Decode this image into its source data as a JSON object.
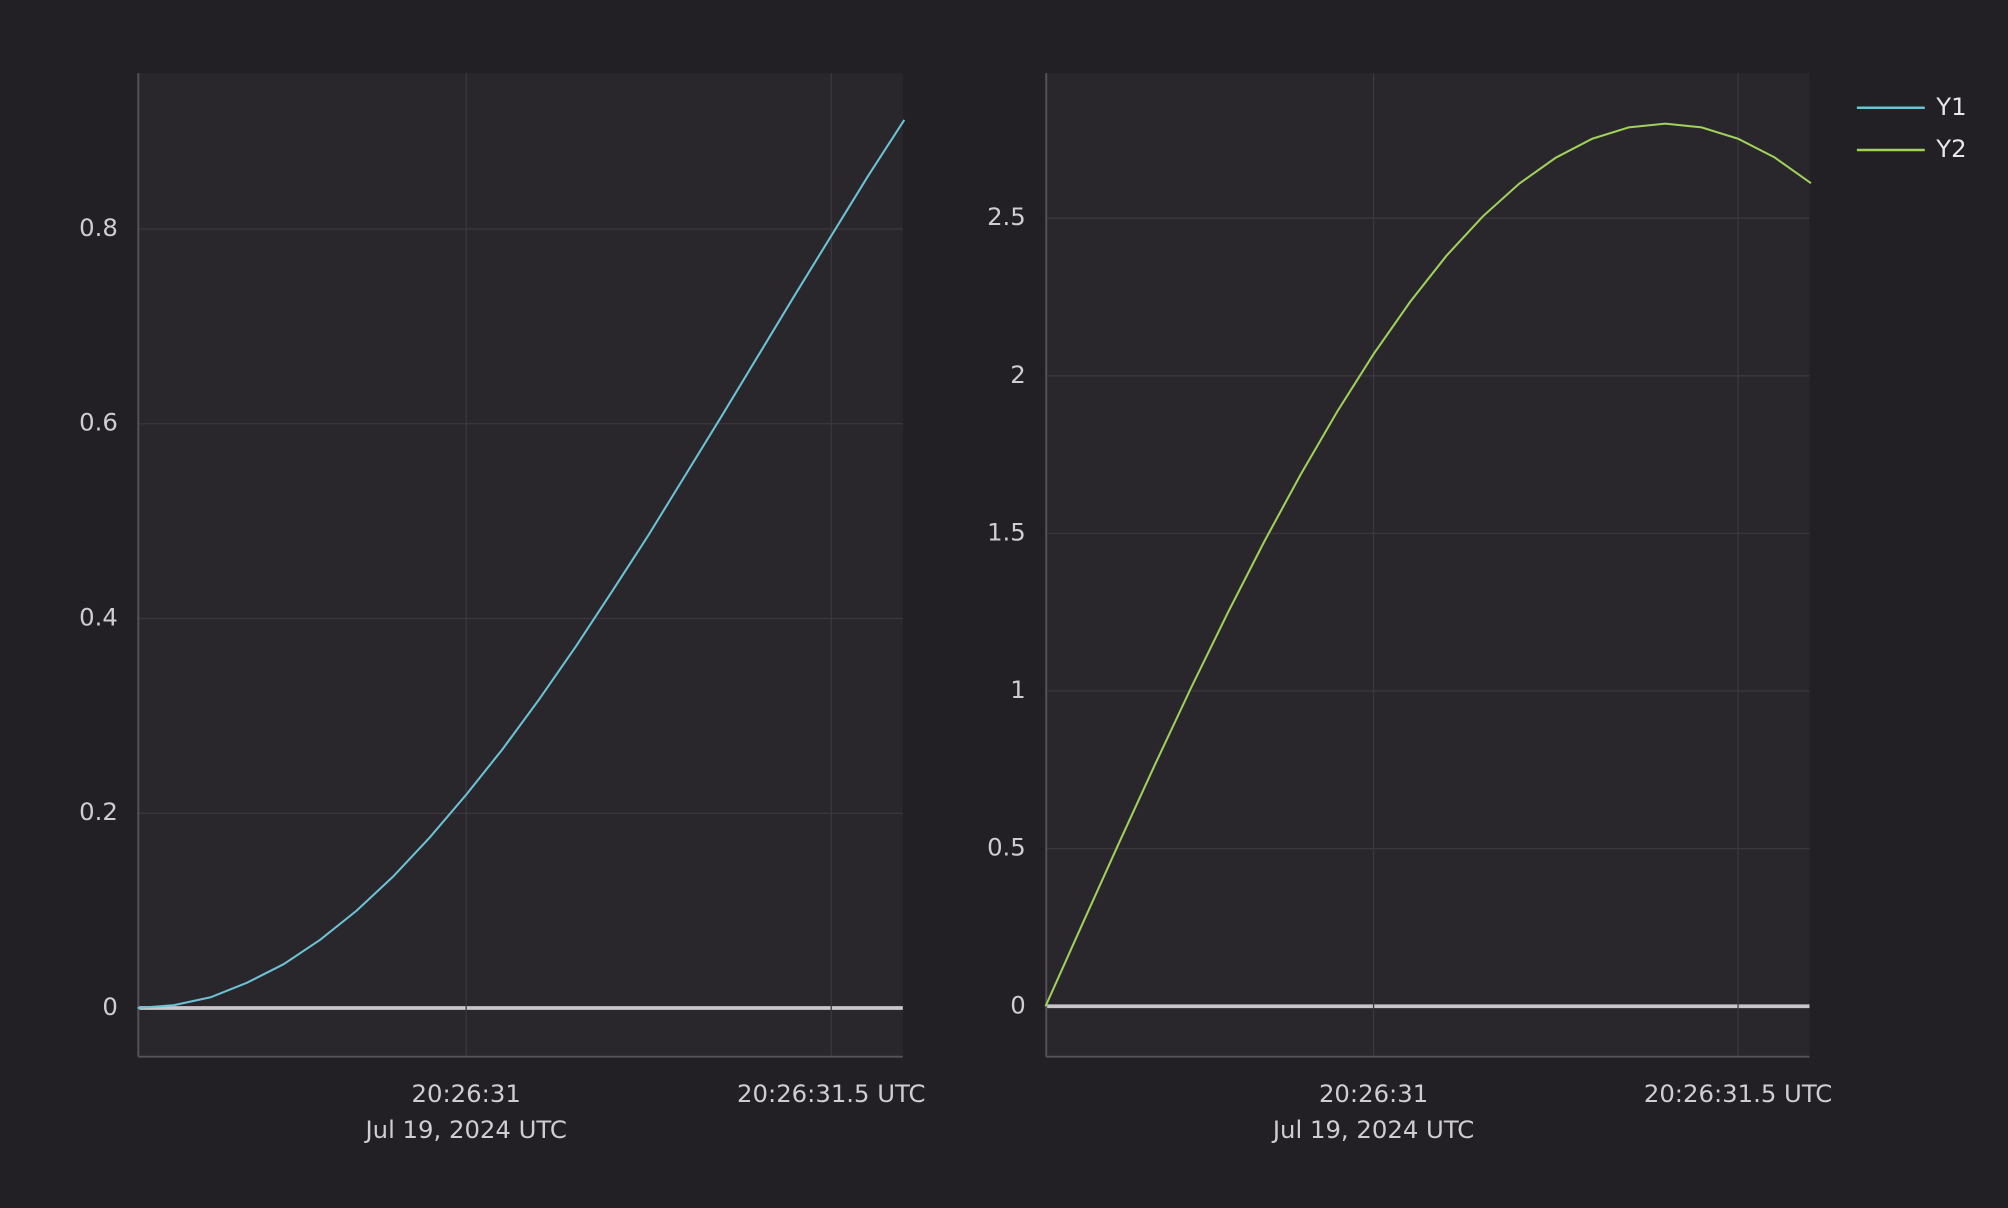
{
  "chart_data": [
    {
      "type": "line",
      "x": [
        30.55,
        30.6,
        30.65,
        30.7,
        30.75,
        30.8,
        30.85,
        30.9,
        30.95,
        31.0,
        31.05,
        31.1,
        31.15,
        31.2,
        31.25,
        31.3,
        31.35,
        31.4,
        31.45,
        31.5,
        31.55,
        31.6
      ],
      "series": [
        {
          "name": "Y1",
          "color": "#6cc3d5",
          "values": [
            0,
            0.003,
            0.011,
            0.026,
            0.045,
            0.07,
            0.1,
            0.135,
            0.175,
            0.219,
            0.266,
            0.317,
            0.371,
            0.428,
            0.486,
            0.547,
            0.608,
            0.67,
            0.732,
            0.793,
            0.854,
            0.912
          ]
        }
      ],
      "xlim": [
        30.551,
        31.598
      ],
      "ylim": [
        -0.05,
        0.96
      ],
      "xticks": [
        {
          "value": 31,
          "label": "20:26:31",
          "sublabel": "Jul 19, 2024 UTC"
        },
        {
          "value": 31.5,
          "label": "20:26:31.5 UTC"
        }
      ],
      "yticks": [
        0,
        0.2,
        0.4,
        0.6,
        0.8
      ],
      "grid": true
    },
    {
      "type": "line",
      "x": [
        30.55,
        30.6,
        30.65,
        30.7,
        30.75,
        30.8,
        30.85,
        30.9,
        30.95,
        31.0,
        31.05,
        31.1,
        31.15,
        31.2,
        31.25,
        31.3,
        31.35,
        31.4,
        31.45,
        31.5,
        31.55,
        31.6
      ],
      "series": [
        {
          "name": "Y2",
          "color": "#9fd15b",
          "values": [
            0,
            0.258,
            0.514,
            0.766,
            1.012,
            1.248,
            1.474,
            1.687,
            1.886,
            2.069,
            2.234,
            2.381,
            2.506,
            2.61,
            2.692,
            2.752,
            2.788,
            2.8,
            2.788,
            2.752,
            2.693,
            2.611
          ]
        }
      ],
      "xlim": [
        30.551,
        31.598
      ],
      "ylim": [
        -0.16,
        2.96
      ],
      "xticks": [
        {
          "value": 31,
          "label": "20:26:31",
          "sublabel": "Jul 19, 2024 UTC"
        },
        {
          "value": 31.5,
          "label": "20:26:31.5 UTC"
        }
      ],
      "yticks": [
        0,
        0.5,
        1,
        1.5,
        2,
        2.5
      ],
      "grid": true
    }
  ]
}
